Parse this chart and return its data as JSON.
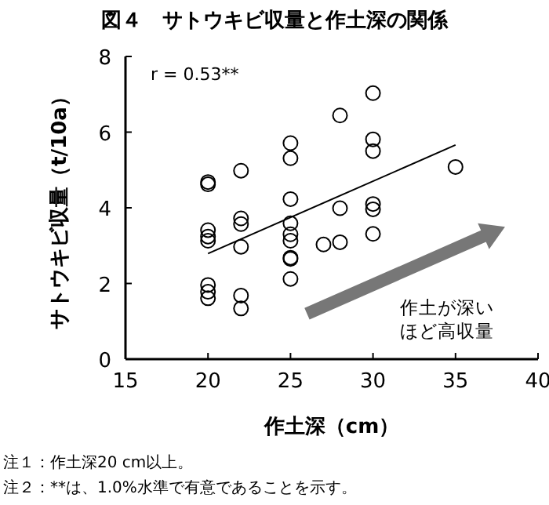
{
  "chart_data": {
    "type": "scatter",
    "title": "図４　サトウキビ収量と作土深の関係",
    "xlabel": "作土深（cm）",
    "ylabel": "サトウキビ収量（t/10a）",
    "xlim": [
      15,
      40
    ],
    "xticks": [
      15,
      20,
      25,
      30,
      35,
      40
    ],
    "ylim": [
      0,
      8
    ],
    "yticks": [
      0,
      2,
      4,
      6,
      8
    ],
    "grid": false,
    "series": [
      {
        "marker": "circle",
        "color": "#000000",
        "x": [
          20,
          20,
          20,
          20,
          20,
          20,
          20,
          20,
          22,
          22,
          22,
          22,
          22,
          22,
          25,
          25,
          25,
          25,
          25,
          25,
          25,
          25,
          25,
          27,
          28,
          28,
          28,
          30,
          30,
          30,
          30,
          30,
          30,
          35
        ],
        "values": [
          4.68,
          4.62,
          3.41,
          3.24,
          3.13,
          1.96,
          1.78,
          1.61,
          4.98,
          3.72,
          3.57,
          2.97,
          1.68,
          1.34,
          5.71,
          5.31,
          4.23,
          3.59,
          3.3,
          3.13,
          2.68,
          2.65,
          2.12,
          3.03,
          6.44,
          3.99,
          3.09,
          7.03,
          5.81,
          5.5,
          4.1,
          3.96,
          3.31,
          5.08
        ]
      },
      {
        "type": "line",
        "marker": "none",
        "color": "#000000",
        "x": [
          20,
          35
        ],
        "values": [
          2.79,
          5.66
        ]
      }
    ],
    "annotations": [
      "r = 0.53**",
      "作土が深い",
      "ほど高収量",
      "注１：作土深20 cm以上。",
      "注２：**は、1.0%水準で有意であることを示す。"
    ]
  }
}
